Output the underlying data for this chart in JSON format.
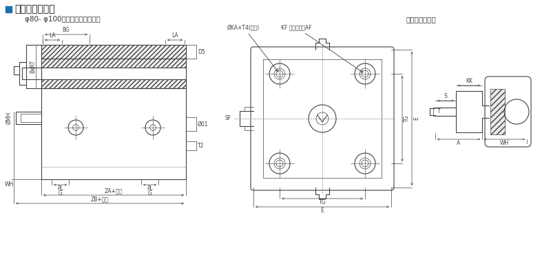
{
  "title": "外形与安装尺寸",
  "title_icon_color": "#1a6faf",
  "subtitle_left": "φ80- φ100（活塞杆内螺纹型）",
  "subtitle_right": "活塞杆外螺纹型",
  "bg_color": "#ffffff",
  "line_color": "#404040",
  "font_size_title": 10,
  "font_size_label": 5.5,
  "font_size_subtitle": 7.5
}
